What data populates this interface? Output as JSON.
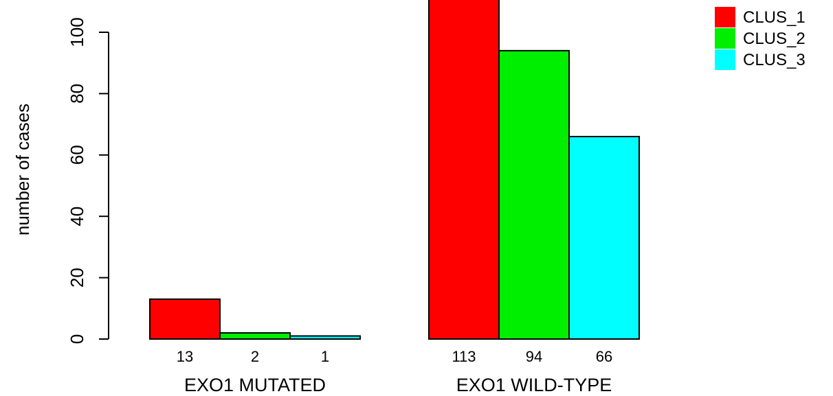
{
  "chart_data": {
    "type": "bar",
    "ylabel": "number of cases",
    "ylim": [
      0,
      120
    ],
    "yticks": [
      0,
      20,
      40,
      60,
      80,
      100
    ],
    "groups": [
      {
        "label": "EXO1 MUTATED",
        "values": [
          13,
          2,
          1
        ],
        "value_labels": [
          "13",
          "2",
          "1"
        ]
      },
      {
        "label": "EXO1 WILD-TYPE",
        "values": [
          113,
          94,
          66
        ],
        "value_labels": [
          "113",
          "94",
          "66"
        ]
      }
    ],
    "series": [
      {
        "name": "CLUS_1",
        "color": "#ff0000"
      },
      {
        "name": "CLUS_2",
        "color": "#00ee00"
      },
      {
        "name": "CLUS_3",
        "color": "#00ffff"
      }
    ],
    "legend_position": "top-right",
    "grid": false
  }
}
